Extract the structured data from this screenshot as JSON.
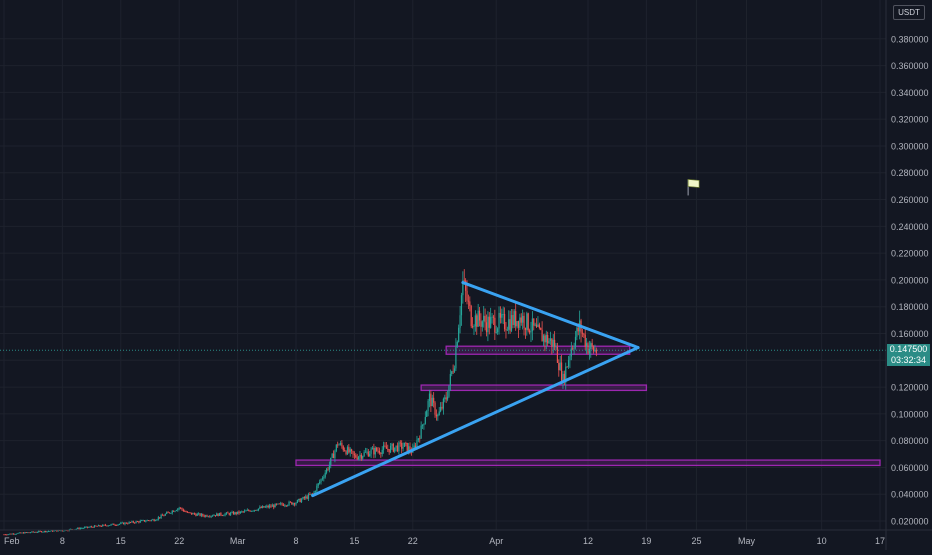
{
  "chart_data": {
    "type": "candlestick",
    "quote_currency": "USDT",
    "yaxis_ticks": [
      "0.380000",
      "0.360000",
      "0.340000",
      "0.320000",
      "0.300000",
      "0.280000",
      "0.260000",
      "0.240000",
      "0.220000",
      "0.200000",
      "0.180000",
      "0.160000",
      "0.140000",
      "0.120000",
      "0.100000",
      "0.080000",
      "0.060000",
      "0.040000",
      "0.020000"
    ],
    "yaxis_tick_values": [
      0.38,
      0.36,
      0.34,
      0.32,
      0.3,
      0.28,
      0.26,
      0.24,
      0.22,
      0.2,
      0.18,
      0.16,
      0.14,
      0.12,
      0.1,
      0.08,
      0.06,
      0.04,
      0.02
    ],
    "ylim": [
      0.0,
      0.41
    ],
    "xaxis_ticks": [
      "Feb",
      "8",
      "15",
      "22",
      "Mar",
      "8",
      "15",
      "22",
      "Apr",
      "12",
      "19",
      "25",
      "May",
      "10",
      "17"
    ],
    "xaxis_tick_dates": [
      "2021-02-01",
      "2021-02-08",
      "2021-02-15",
      "2021-02-22",
      "2021-03-01",
      "2021-03-08",
      "2021-03-15",
      "2021-03-22",
      "2021-04-01",
      "2021-04-12",
      "2021-04-19",
      "2021-04-25",
      "2021-05-01",
      "2021-05-10",
      "2021-05-17"
    ],
    "xlim": [
      "2021-02-01",
      "2021-05-17"
    ],
    "last_price": "0.147500",
    "countdown": "03:32:34",
    "price_series": [
      [
        "2021-02-01",
        0.01
      ],
      [
        "2021-02-05",
        0.012
      ],
      [
        "2021-02-08",
        0.013
      ],
      [
        "2021-02-12",
        0.016
      ],
      [
        "2021-02-15",
        0.018
      ],
      [
        "2021-02-19",
        0.021
      ],
      [
        "2021-02-22",
        0.03
      ],
      [
        "2021-02-23",
        0.026
      ],
      [
        "2021-02-25",
        0.024
      ],
      [
        "2021-03-01",
        0.026
      ],
      [
        "2021-03-04",
        0.03
      ],
      [
        "2021-03-08",
        0.034
      ],
      [
        "2021-03-10",
        0.04
      ],
      [
        "2021-03-12",
        0.062
      ],
      [
        "2021-03-13",
        0.078
      ],
      [
        "2021-03-15",
        0.068
      ],
      [
        "2021-03-17",
        0.072
      ],
      [
        "2021-03-19",
        0.074
      ],
      [
        "2021-03-21",
        0.076
      ],
      [
        "2021-03-22",
        0.072
      ],
      [
        "2021-03-23",
        0.088
      ],
      [
        "2021-03-24",
        0.112
      ],
      [
        "2021-03-25",
        0.098
      ],
      [
        "2021-03-26",
        0.112
      ],
      [
        "2021-03-27",
        0.14
      ],
      [
        "2021-03-28",
        0.198
      ],
      [
        "2021-03-29",
        0.172
      ],
      [
        "2021-03-31",
        0.168
      ],
      [
        "2021-04-02",
        0.168
      ],
      [
        "2021-04-04",
        0.172
      ],
      [
        "2021-04-06",
        0.16
      ],
      [
        "2021-04-08",
        0.152
      ],
      [
        "2021-04-09",
        0.125
      ],
      [
        "2021-04-10",
        0.15
      ],
      [
        "2021-04-11",
        0.165
      ],
      [
        "2021-04-12",
        0.15
      ],
      [
        "2021-04-13",
        0.147
      ]
    ],
    "trendlines": [
      {
        "from": [
          "2021-03-28",
          0.198
        ],
        "to": [
          "2021-04-18",
          0.1495
        ],
        "color": "#3aa3f2"
      },
      {
        "from": [
          "2021-03-10",
          0.039
        ],
        "to": [
          "2021-04-18",
          0.1495
        ],
        "color": "#3aa3f2"
      }
    ],
    "zones": [
      {
        "from": [
          "2021-03-26",
          0.1445
        ],
        "to": [
          "2021-04-17",
          0.1505
        ],
        "color": "#9c27b0"
      },
      {
        "from": [
          "2021-03-23",
          0.1175
        ],
        "to": [
          "2021-04-19",
          0.1215
        ],
        "color": "#9c27b0"
      },
      {
        "from": [
          "2021-03-08",
          0.0615
        ],
        "to": [
          "2021-05-17",
          0.0655
        ],
        "color": "#9c27b0"
      }
    ],
    "flag": {
      "at": [
        "2021-04-24",
        0.275
      ],
      "icon": "flag-icon"
    },
    "colors": {
      "background": "#131722",
      "grid": "#1e222d",
      "up": "#26a69a",
      "down": "#ef5350",
      "trendline": "#3aa3f2",
      "zone": "#9c27b0",
      "price_line": "#2b8c86",
      "axis_text": "#b2b5be"
    }
  }
}
